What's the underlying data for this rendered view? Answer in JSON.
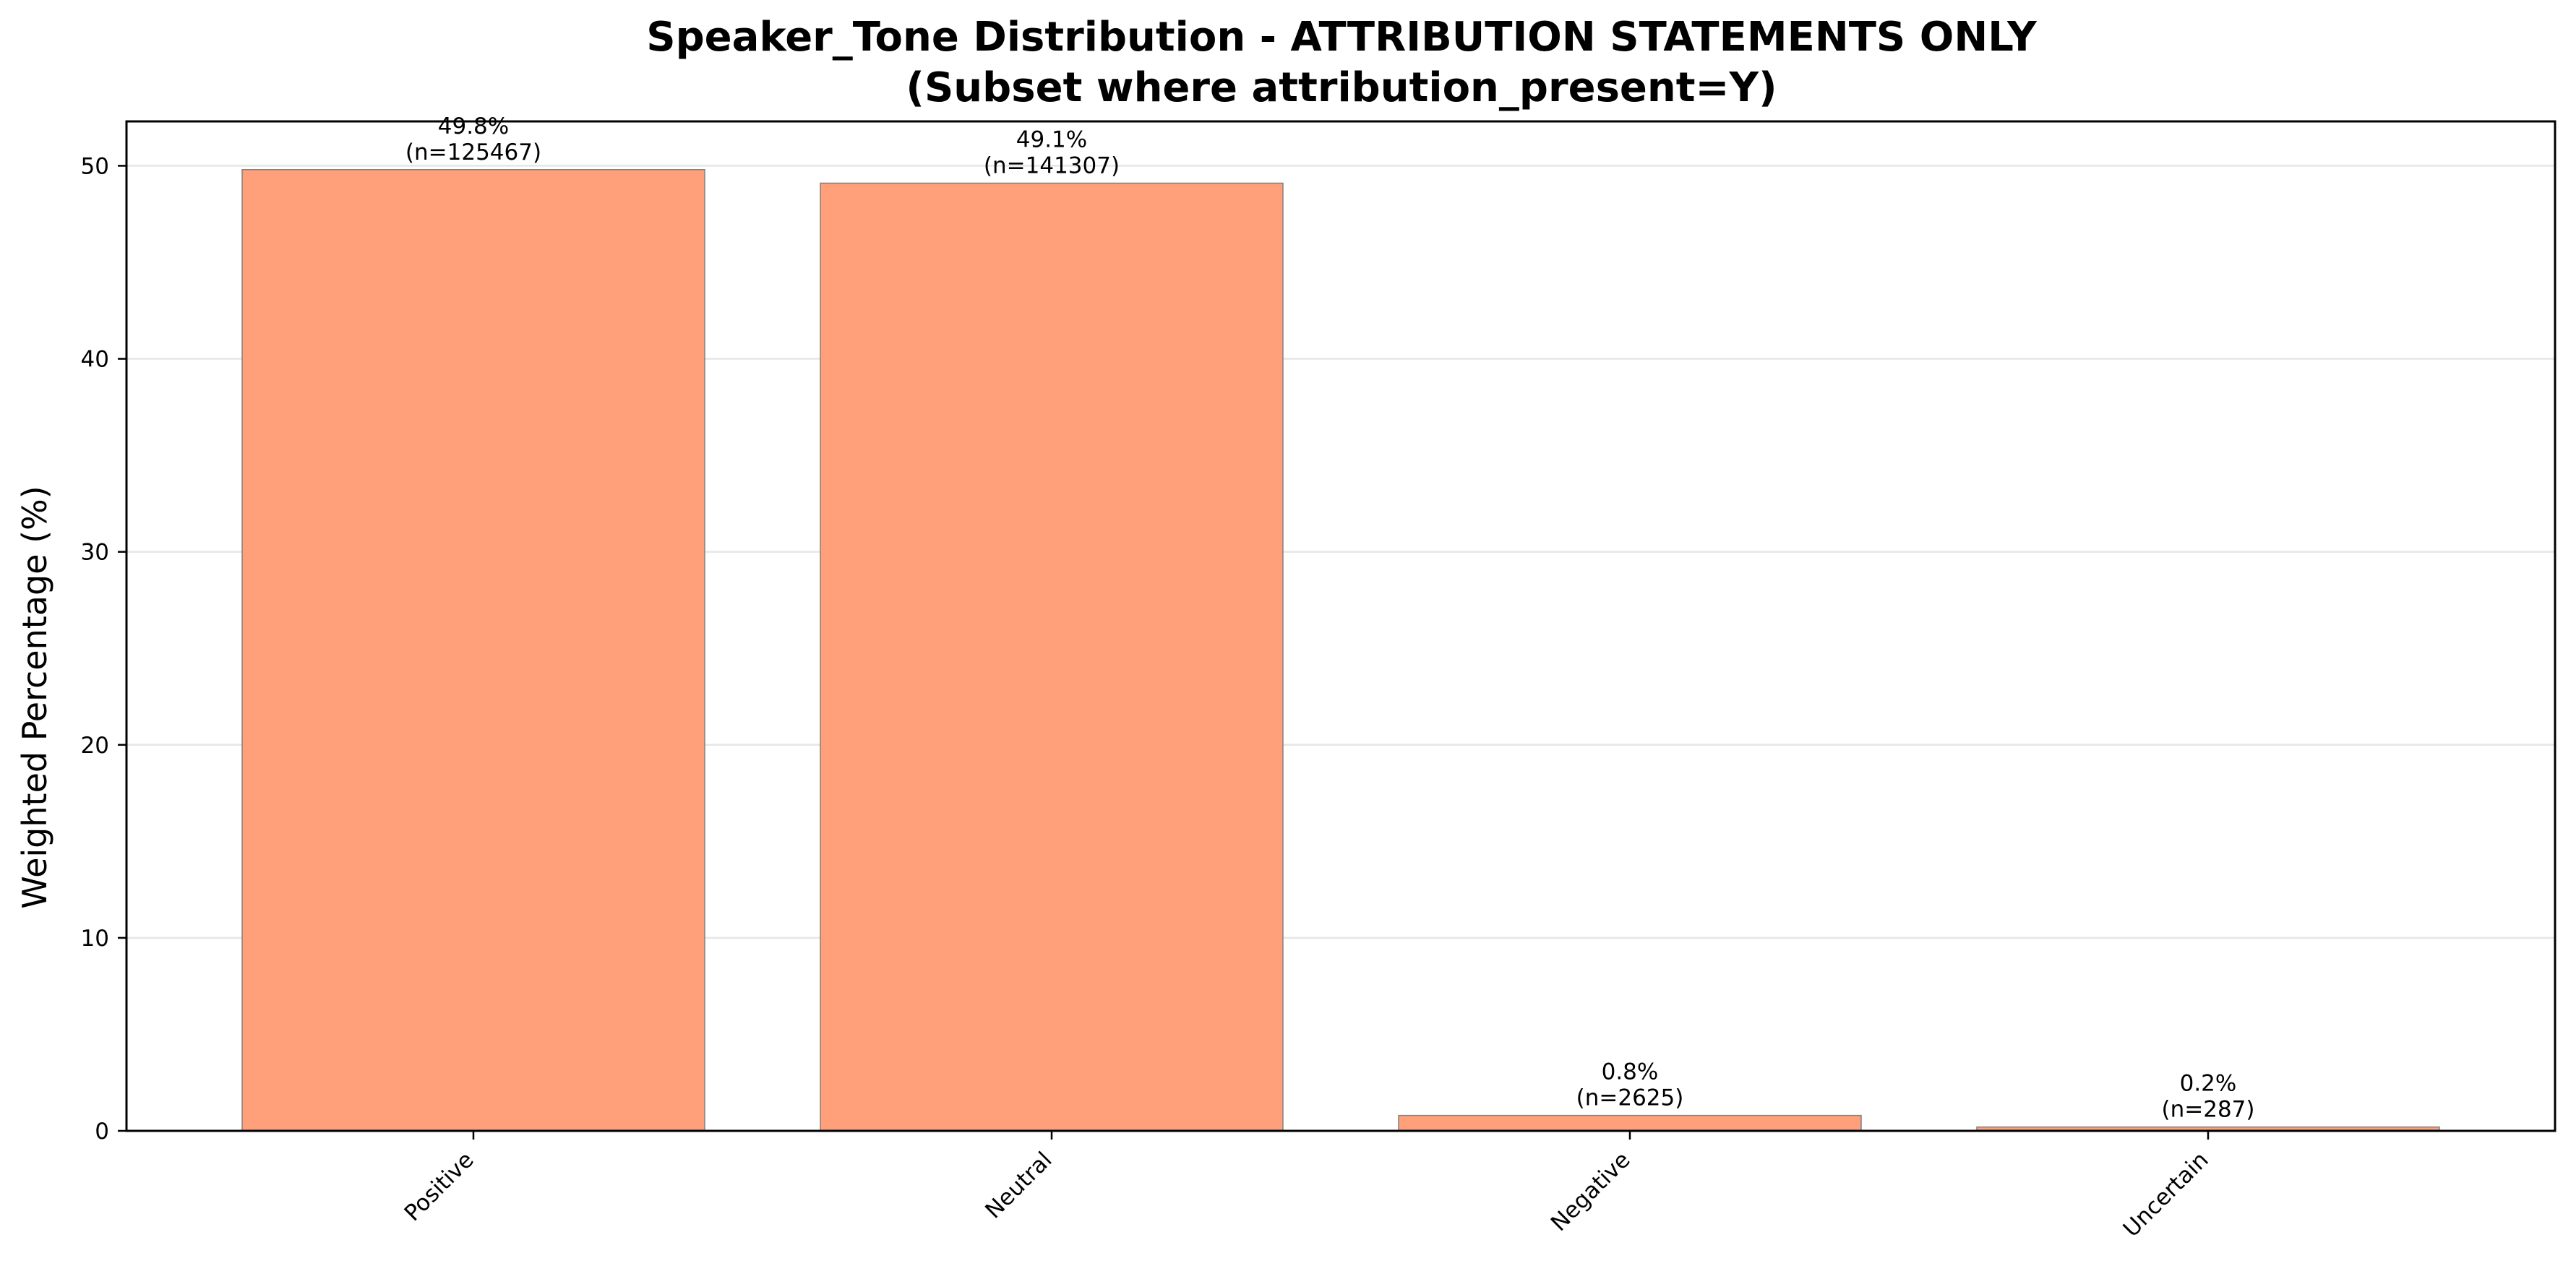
{
  "chart_data": {
    "type": "bar",
    "title_line1": "Speaker_Tone Distribution - ATTRIBUTION STATEMENTS ONLY",
    "title_line2": "(Subset where attribution_present=Y)",
    "xlabel": "",
    "ylabel": "Weighted Percentage (%)",
    "categories": [
      "Positive",
      "Neutral",
      "Negative",
      "Uncertain"
    ],
    "values": [
      49.8,
      49.1,
      0.8,
      0.2
    ],
    "value_labels": [
      "49.8%",
      "49.1%",
      "0.8%",
      "0.2%"
    ],
    "count_labels": [
      "(n=125467)",
      "(n=141307)",
      "(n=2625)",
      "(n=287)"
    ],
    "ylim": [
      0,
      52.3
    ],
    "yticks": [
      0,
      10,
      20,
      30,
      40,
      50
    ],
    "grid": "y",
    "legend": "none",
    "bar_color": "#FFA07A",
    "bar_edge_color": "#808080",
    "grid_color": "#e6e6e6"
  }
}
